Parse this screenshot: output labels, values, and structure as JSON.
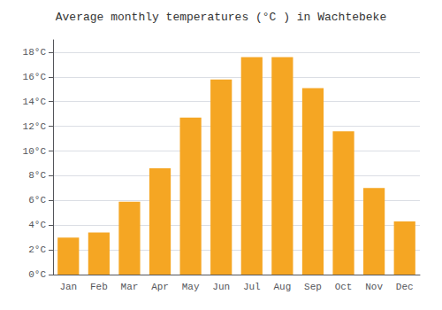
{
  "chart_data": {
    "type": "bar",
    "title": "Average monthly temperatures (°C ) in Wachtebeke",
    "categories": [
      "Jan",
      "Feb",
      "Mar",
      "Apr",
      "May",
      "Jun",
      "Jul",
      "Aug",
      "Sep",
      "Oct",
      "Nov",
      "Dec"
    ],
    "values": [
      3.0,
      3.4,
      5.9,
      8.6,
      12.7,
      15.8,
      17.6,
      17.6,
      15.1,
      11.6,
      7.0,
      4.3
    ],
    "color": "#F5A623",
    "ylim": [
      0,
      19
    ],
    "yticks": [
      {
        "value": 0,
        "label": "0°C"
      },
      {
        "value": 2,
        "label": "2°C"
      },
      {
        "value": 4,
        "label": "4°C"
      },
      {
        "value": 6,
        "label": "6°C"
      },
      {
        "value": 8,
        "label": "8°C"
      },
      {
        "value": 10,
        "label": "10°C"
      },
      {
        "value": 12,
        "label": "12°C"
      },
      {
        "value": 14,
        "label": "14°C"
      },
      {
        "value": 16,
        "label": "16°C"
      },
      {
        "value": 18,
        "label": "18°C"
      }
    ],
    "grid": true
  }
}
